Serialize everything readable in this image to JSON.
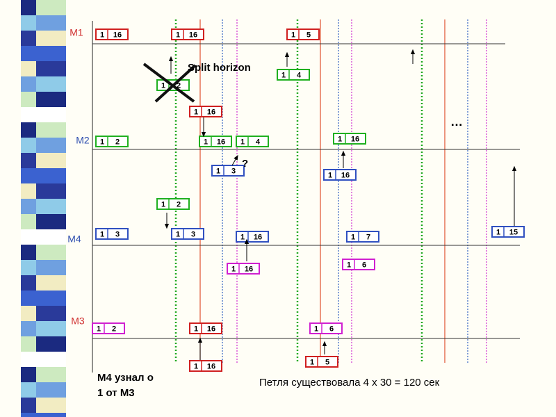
{
  "row_labels": [
    "M1",
    "M2",
    "M4",
    "M3"
  ],
  "boxes": [
    {
      "cells": [
        "1",
        "16"
      ]
    },
    {
      "cells": [
        "1",
        "16"
      ]
    },
    {
      "cells": [
        "1",
        "5"
      ]
    },
    {
      "cells": [
        "1",
        "4"
      ]
    },
    {
      "cells": [
        "1",
        "2"
      ]
    },
    {
      "cells": [
        "1",
        "16"
      ]
    },
    {
      "cells": [
        "1",
        "2"
      ]
    },
    {
      "cells": [
        "1",
        "16"
      ]
    },
    {
      "cells": [
        "1",
        "4"
      ]
    },
    {
      "cells": [
        "1",
        "16"
      ]
    },
    {
      "cells": [
        "1",
        "3"
      ]
    },
    {
      "cells": [
        "1",
        "16"
      ]
    },
    {
      "cells": [
        "1",
        "2"
      ]
    },
    {
      "cells": [
        "1",
        "3"
      ]
    },
    {
      "cells": [
        "1",
        "3"
      ]
    },
    {
      "cells": [
        "1",
        "16"
      ]
    },
    {
      "cells": [
        "1",
        "7"
      ]
    },
    {
      "cells": [
        "1",
        "15"
      ]
    },
    {
      "cells": [
        "1",
        "16"
      ]
    },
    {
      "cells": [
        "1",
        "6"
      ]
    },
    {
      "cells": [
        "1",
        "2"
      ]
    },
    {
      "cells": [
        "1",
        "16"
      ]
    },
    {
      "cells": [
        "1",
        "6"
      ]
    },
    {
      "cells": [
        "1",
        "16"
      ]
    },
    {
      "cells": [
        "1",
        "5"
      ]
    }
  ],
  "annotations": {
    "split_horizon": "Split horizon",
    "question": "?",
    "ellipsis": "…",
    "note_line1": "М4 узнал о",
    "note_line2": "1 от М3",
    "loop_caption": "Петля существовала 4 х 30 = 120 сек"
  }
}
